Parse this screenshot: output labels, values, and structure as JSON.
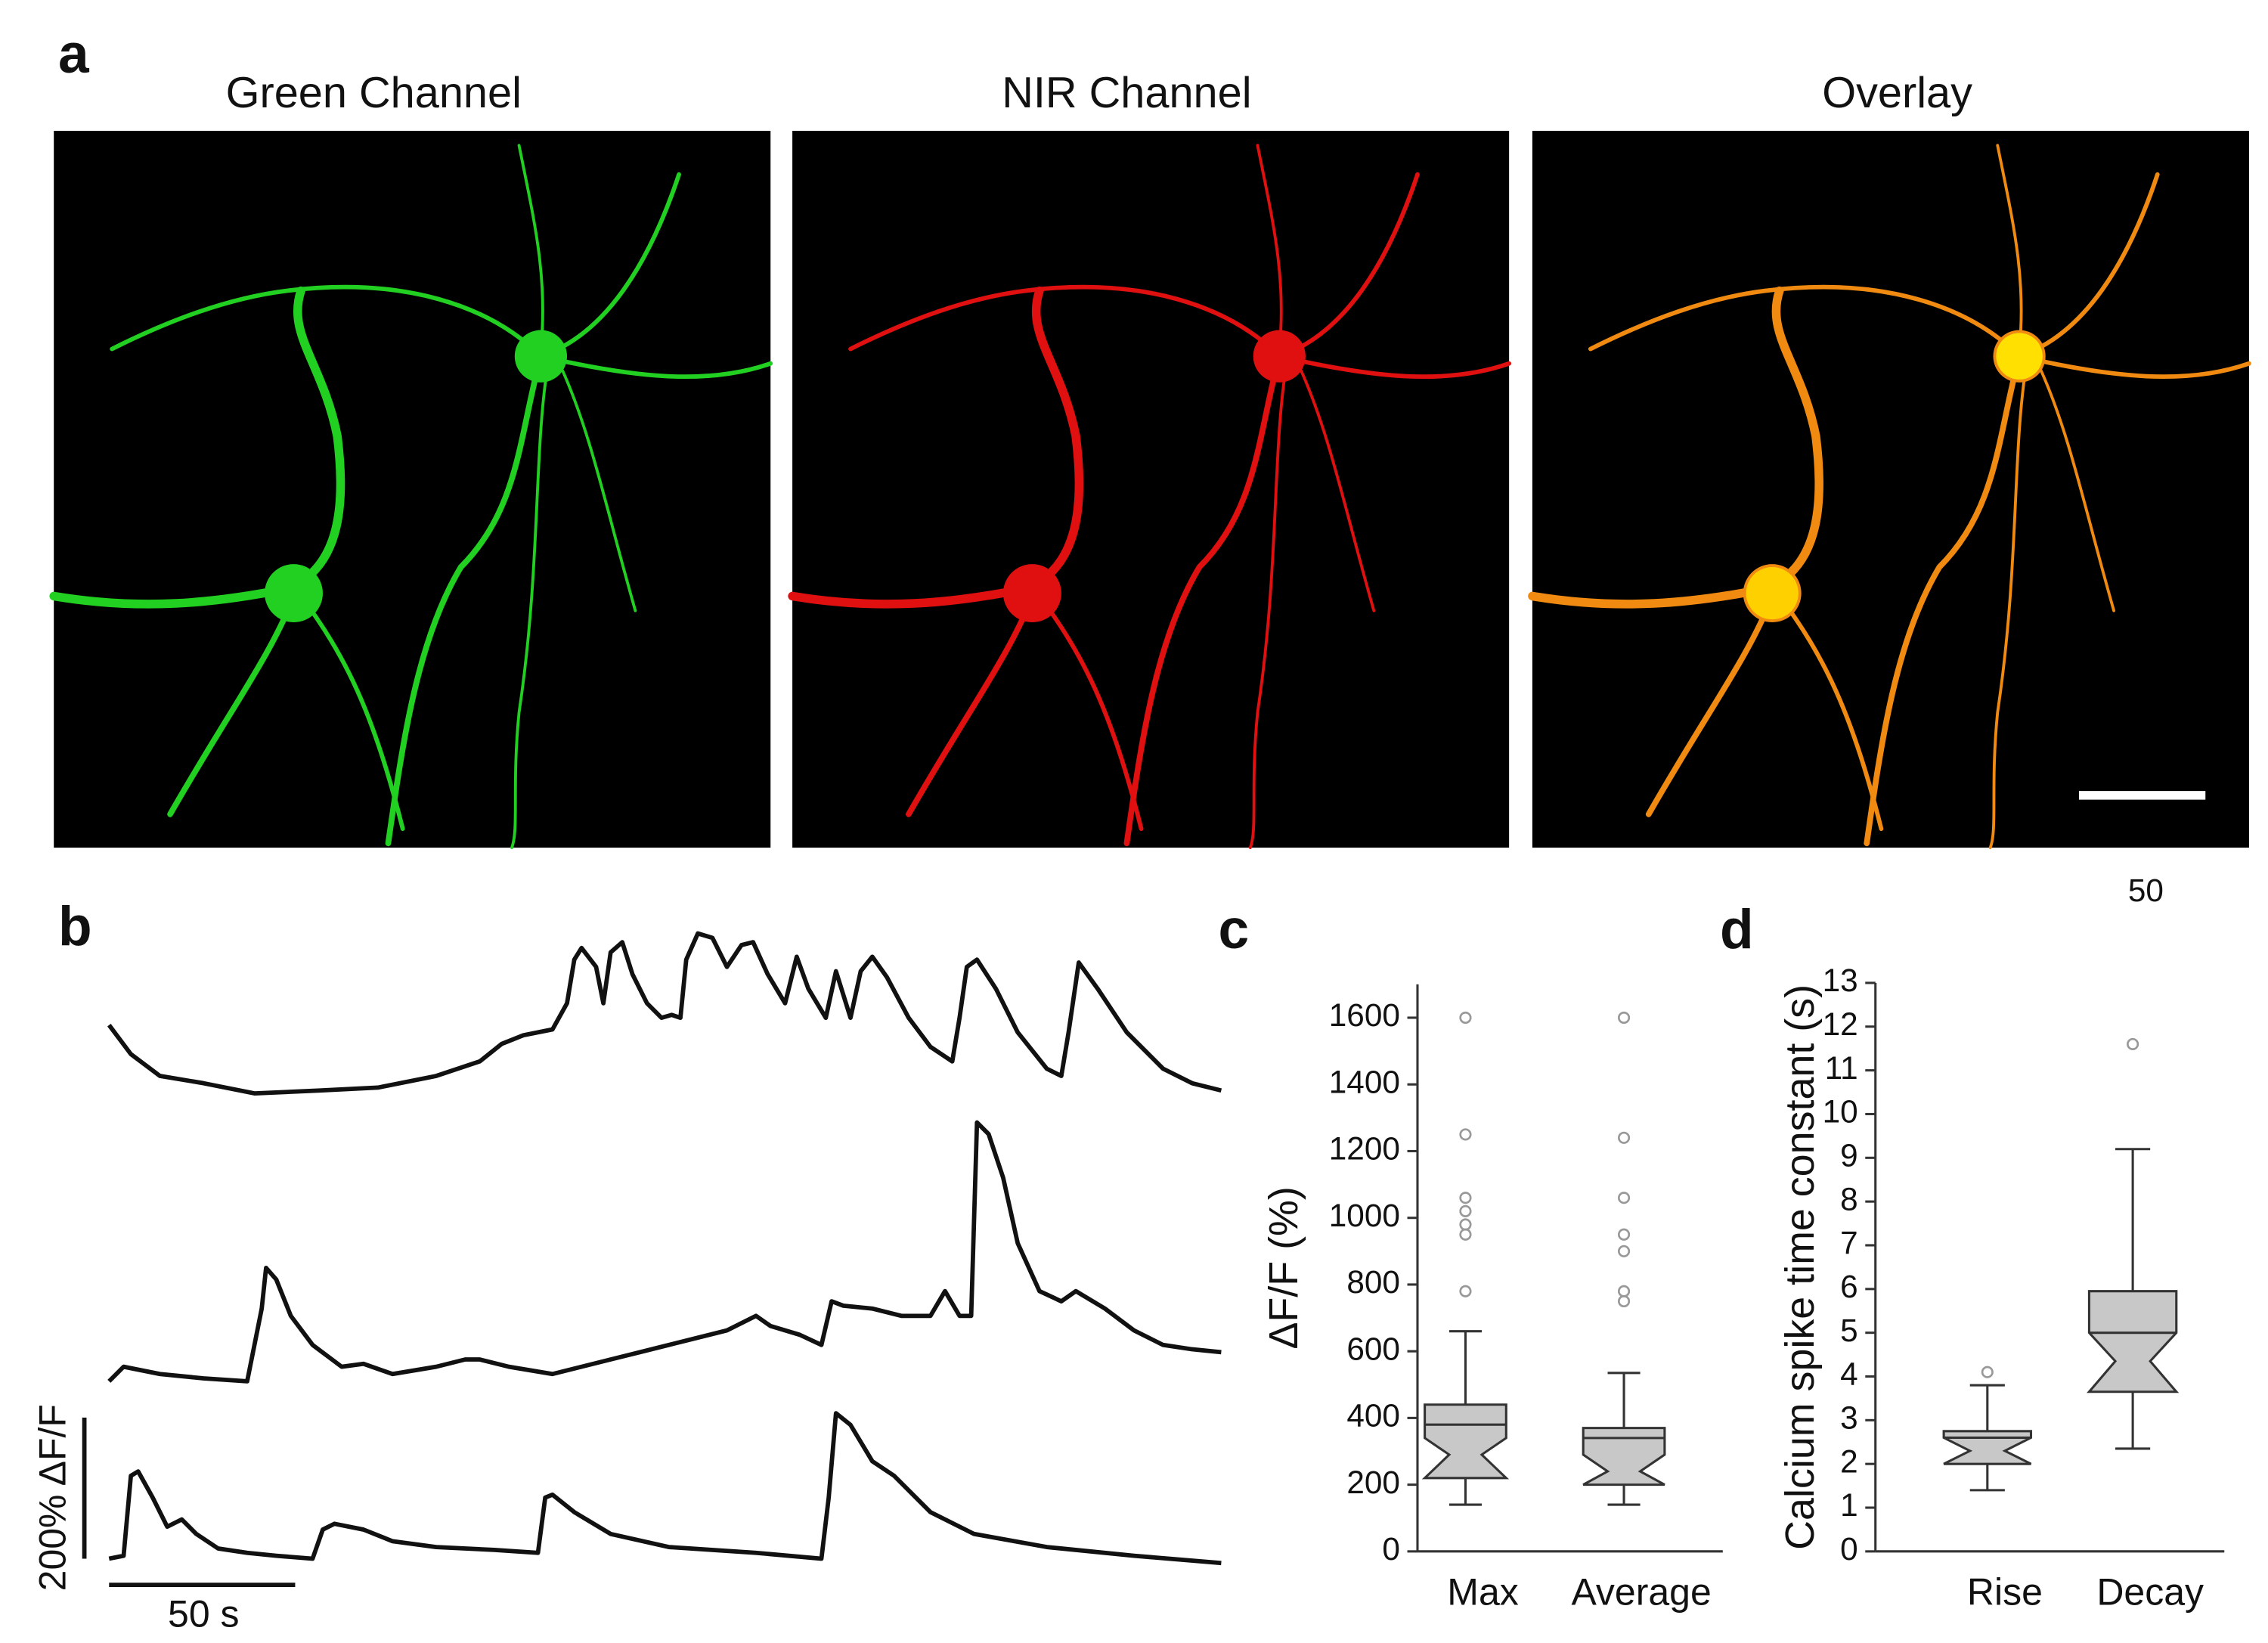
{
  "panel_labels": [
    "a",
    "b",
    "c",
    "d"
  ],
  "images": {
    "titles": [
      "Green Channel",
      "NIR Channel",
      "Overlay"
    ],
    "scale_bar_label": "50"
  },
  "traces": {
    "scale_y_label": "200% ΔF/F",
    "scale_x_label": "50 s"
  },
  "chart_data": [
    {
      "type": "box",
      "ylabel": "ΔF/F (%)",
      "categories": [
        "Max",
        "Average"
      ],
      "color": "#c8c8c8",
      "ylim": [
        0,
        1700
      ],
      "yticks": [
        0,
        200,
        400,
        600,
        800,
        1000,
        1200,
        1400,
        1600
      ],
      "boxes": [
        {
          "whisker_low": 140,
          "q1": 220,
          "notch": [
            340,
            290,
            220
          ],
          "median": 380,
          "q3": 440,
          "whisker_high": 660,
          "outliers": [
            1600,
            1250,
            1060,
            1020,
            980,
            950,
            780
          ]
        },
        {
          "whisker_low": 140,
          "q1": 200,
          "notch": [
            290,
            240,
            200
          ],
          "median": 340,
          "q3": 370,
          "whisker_high": 535,
          "outliers": [
            1600,
            1240,
            1060,
            950,
            900,
            780,
            750
          ]
        }
      ]
    },
    {
      "type": "box",
      "ylabel": "Calcium spike time constant (s)",
      "categories": [
        "Rise",
        "Decay"
      ],
      "color": "#c8c8c8",
      "ylim": [
        0,
        13
      ],
      "yticks": [
        0,
        1,
        2,
        3,
        4,
        5,
        6,
        7,
        8,
        9,
        10,
        11,
        12,
        13
      ],
      "boxes": [
        {
          "whisker_low": 1.4,
          "q1": 2.0,
          "notch": [
            2.6,
            2.3,
            2.0
          ],
          "median": 2.6,
          "q3": 2.75,
          "whisker_high": 3.8,
          "outliers": [
            4.1
          ]
        },
        {
          "whisker_low": 2.35,
          "q1": 3.65,
          "notch": [
            5.0,
            4.35,
            3.65
          ],
          "median": 5.0,
          "q3": 5.95,
          "whisker_high": 9.2,
          "outliers": [
            11.6
          ]
        }
      ]
    }
  ]
}
